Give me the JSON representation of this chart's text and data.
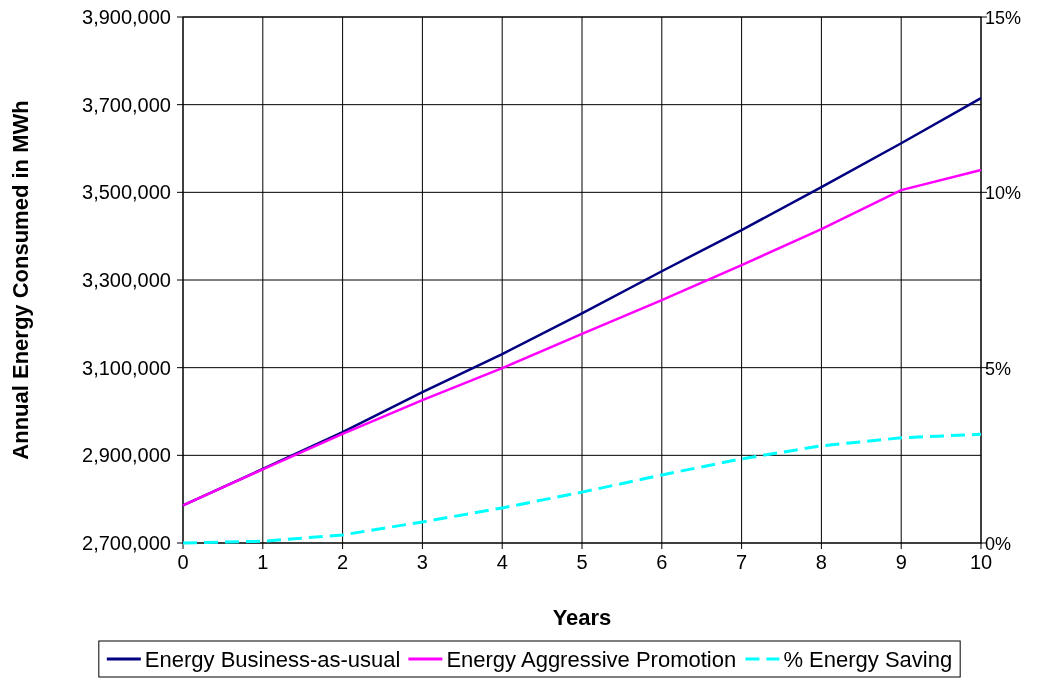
{
  "chart_data": {
    "type": "line",
    "xlabel": "Years",
    "ylabel": "Annual Energy Consumed in MWh",
    "x": [
      0,
      1,
      2,
      3,
      4,
      5,
      6,
      7,
      8,
      9,
      10
    ],
    "xlim": [
      0,
      10
    ],
    "xticks": [
      0,
      1,
      2,
      3,
      4,
      5,
      6,
      7,
      8,
      9,
      10
    ],
    "ylim": [
      2700000,
      3900000
    ],
    "yticks": [
      {
        "value": 2700000,
        "label": "2,700,000"
      },
      {
        "value": 2900000,
        "label": "2,900,000"
      },
      {
        "value": 3100000,
        "label": "3,100,000"
      },
      {
        "value": 3300000,
        "label": "3,300,000"
      },
      {
        "value": 3500000,
        "label": "3,500,000"
      },
      {
        "value": 3700000,
        "label": "3,700,000"
      },
      {
        "value": 3900000,
        "label": "3,900,000"
      }
    ],
    "y2lim": [
      0,
      15
    ],
    "y2ticks": [
      {
        "value": 0,
        "label": "0%"
      },
      {
        "value": 5,
        "label": "5%"
      },
      {
        "value": 10,
        "label": "10%"
      },
      {
        "value": 15,
        "label": "15%"
      }
    ],
    "series": [
      {
        "name": "Energy Business-as-usual",
        "color": "#000080",
        "line_style": "solid",
        "values": [
          2786000,
          2869000,
          2953000,
          3044000,
          3131000,
          3224000,
          3320000,
          3414000,
          3512000,
          3612000,
          3715000
        ]
      },
      {
        "name": "Energy Aggressive Promotion",
        "color": "#ff00ff",
        "line_style": "solid",
        "values": [
          2786000,
          2868000,
          2949000,
          3026000,
          3099000,
          3177000,
          3254000,
          3334000,
          3416000,
          3505000,
          3551000
        ]
      },
      {
        "name": "% Energy Saving",
        "color": "#00ffff",
        "line_style": "dashed",
        "axis": "y2",
        "values": [
          0,
          0.05,
          0.23,
          0.6,
          1.0,
          1.45,
          1.94,
          2.4,
          2.77,
          3.0,
          3.1
        ]
      }
    ],
    "grid": true,
    "legend": "bottom"
  }
}
